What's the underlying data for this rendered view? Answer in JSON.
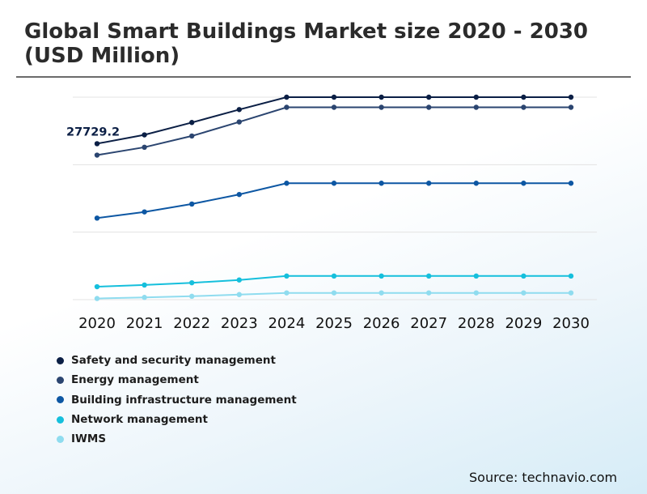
{
  "title": "Global Smart Buildings Market size 2020 - 2030 (USD Million)",
  "source": "Source: technavio.com",
  "chart_data": {
    "type": "line",
    "title": "Global Smart Buildings Market size 2020 - 2030 (USD Million)",
    "xlabel": "",
    "ylabel": "",
    "x": [
      "2020",
      "2021",
      "2022",
      "2023",
      "2024",
      "2025",
      "2026",
      "2027",
      "2028",
      "2029",
      "2030"
    ],
    "ylim": [
      0,
      36000
    ],
    "grid": true,
    "legend_position": "bottom-left",
    "annotation": "27729.2",
    "series": [
      {
        "name": "Safety and security management",
        "color": "#0b1f45",
        "values": [
          27729.2,
          29300,
          31500,
          33800,
          36000,
          36000,
          36000,
          36000,
          36000,
          36000,
          36000
        ]
      },
      {
        "name": "Energy management",
        "color": "#2b4570",
        "values": [
          25700,
          27100,
          29100,
          31600,
          34200,
          34200,
          34200,
          34200,
          34200,
          34200,
          34200
        ]
      },
      {
        "name": "Building infrastructure management",
        "color": "#0d57a3",
        "values": [
          14500,
          15600,
          17000,
          18700,
          20700,
          20700,
          20700,
          20700,
          20700,
          20700,
          20700
        ]
      },
      {
        "name": "Network management",
        "color": "#15bfdc",
        "values": [
          2300,
          2600,
          3000,
          3500,
          4200,
          4200,
          4200,
          4200,
          4200,
          4200,
          4200
        ]
      },
      {
        "name": "IWMS",
        "color": "#8fdcef",
        "values": [
          200,
          400,
          600,
          900,
          1200,
          1200,
          1200,
          1200,
          1200,
          1200,
          1200
        ]
      }
    ]
  }
}
